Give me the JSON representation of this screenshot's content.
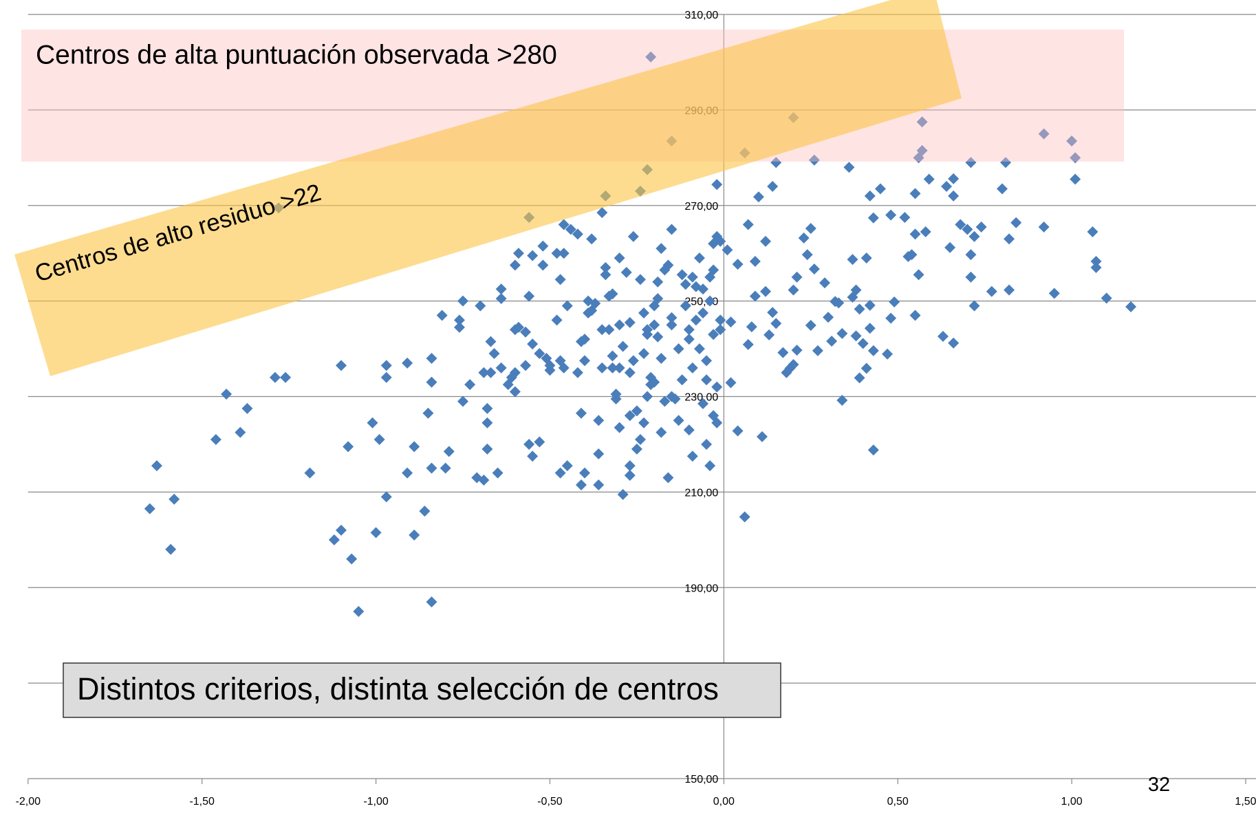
{
  "chart_data": {
    "type": "scatter",
    "color": "#4a7ebb",
    "grid": true,
    "xlim": [
      -2,
      1.5
    ],
    "xticks": [
      {
        "value": -2,
        "label": "-2,00"
      },
      {
        "value": -1.5,
        "label": "-1,50"
      },
      {
        "value": -1,
        "label": "-1,00"
      },
      {
        "value": -0.5,
        "label": "-0,50"
      },
      {
        "value": 0,
        "label": "0,00"
      },
      {
        "value": 0.5,
        "label": "0,50"
      },
      {
        "value": 1,
        "label": "1,00"
      },
      {
        "value": 1.5,
        "label": "1,50"
      }
    ],
    "ylim": [
      150,
      310
    ],
    "yticks": [
      {
        "value": 150,
        "label": "150,00"
      },
      {
        "value": 170,
        "label": "170,00"
      },
      {
        "value": 190,
        "label": "190,00"
      },
      {
        "value": 210,
        "label": "210,00"
      },
      {
        "value": 230,
        "label": "230,00"
      },
      {
        "value": 250,
        "label": "250,00"
      },
      {
        "value": 270,
        "label": "270,00"
      },
      {
        "value": 290,
        "label": "290,00"
      },
      {
        "value": 310,
        "label": "310,00"
      }
    ],
    "annotations": [
      "Centros de alta puntuación observada >280",
      "Centros de alto residuo >22",
      "Distintos criterios, distinta selección de centros"
    ],
    "page_number": "32",
    "x": [
      -1.65,
      -1.63,
      -1.59,
      -1.58,
      -1.46,
      -1.43,
      -1.39,
      -1.37,
      -1.29,
      -1.26,
      -1.19,
      -1.12,
      -1.1,
      -1.1,
      -1.08,
      -1.07,
      -1.05,
      -1.01,
      -1,
      -0.99,
      -0.97,
      -0.97,
      -0.97,
      -0.91,
      -0.91,
      -0.89,
      -0.89,
      -0.86,
      -0.85,
      -0.84,
      -0.84,
      -0.84,
      -0.84,
      -0.8,
      -0.79,
      -0.81,
      -0.76,
      -0.76,
      -0.75,
      -0.75,
      -0.73,
      -0.71,
      -0.69,
      -0.7,
      -0.69,
      -0.68,
      -0.68,
      -0.68,
      -0.67,
      -0.67,
      -0.66,
      -0.65,
      -0.64,
      -0.64,
      -0.64,
      -0.62,
      -0.61,
      -0.6,
      -0.6,
      -0.6,
      -0.59,
      -0.6,
      -0.59,
      -0.57,
      -0.57,
      -0.56,
      -0.56,
      -0.55,
      -0.55,
      -0.55,
      -0.53,
      -0.53,
      -0.52,
      -0.52,
      -0.51,
      -0.5,
      -0.5,
      -0.48,
      -0.48,
      -0.47,
      -0.47,
      -0.47,
      -0.46,
      -0.46,
      -0.46,
      -0.45,
      -0.45,
      -0.44,
      -0.42,
      -0.42,
      -0.41,
      -0.41,
      -0.41,
      -0.4,
      -0.4,
      -0.4,
      -0.39,
      -0.39,
      -0.38,
      -0.38,
      -0.37,
      -0.36,
      -0.36,
      -0.36,
      -0.35,
      -0.35,
      -0.35,
      -0.34,
      -0.34,
      -0.33,
      -0.33,
      -0.32,
      -0.32,
      -0.32,
      -0.31,
      -0.31,
      -0.3,
      -0.3,
      -0.3,
      -0.3,
      -0.29,
      -0.29,
      -0.28,
      -0.27,
      -0.27,
      -0.27,
      -0.27,
      -0.27,
      -0.26,
      -0.26,
      -0.25,
      -0.25,
      -0.24,
      -0.24,
      -0.23,
      -0.23,
      -0.23,
      -0.22,
      -0.22,
      -0.22,
      -0.21,
      -0.21,
      -0.2,
      -0.2,
      -0.2,
      -0.19,
      -0.19,
      -0.19,
      -0.18,
      -0.18,
      -0.18,
      -0.17,
      -0.17,
      -0.16,
      -0.16,
      -0.15,
      -0.15,
      -0.15,
      -0.15,
      -0.14,
      -0.13,
      -0.13,
      -0.12,
      -0.12,
      -0.11,
      -0.11,
      -0.1,
      -0.1,
      -0.1,
      -0.09,
      -0.09,
      -0.09,
      -0.08,
      -0.08,
      -0.07,
      -0.07,
      -0.06,
      -0.06,
      -0.06,
      -0.05,
      -0.05,
      -0.05,
      -0.04,
      -0.04,
      -0.04,
      -0.03,
      -0.03,
      -0.03,
      -0.03,
      -0.02,
      -0.02,
      -0.01,
      -0.01,
      -0.02,
      -0.01,
      -0.02,
      0.43,
      0.42,
      0.45,
      0.48,
      0.52,
      0.55,
      0.59,
      0.64,
      0.66,
      0.66,
      0.68,
      0.7,
      0.72,
      0.74,
      0.8,
      0.82,
      0.84,
      0.92,
      1.06,
      1.07,
      1.07,
      1.1,
      1.17,
      0.95,
      0.82,
      0.77,
      0.72,
      0.71,
      0.71,
      0.65,
      0.63,
      0.66,
      0.58,
      0.55,
      0.56,
      0.55,
      0.54,
      0.53,
      0.49,
      0.48,
      0.47,
      0.43,
      0.41,
      0.43,
      0.42,
      0.42,
      0.39,
      0.41,
      0.37,
      0.38,
      0.37,
      0.38,
      0.4,
      0.39,
      0.34,
      0.34,
      0.33,
      0.32,
      0.31,
      0.3,
      0.27,
      0.29,
      0.26,
      0.25,
      0.25,
      0.24,
      0.23,
      0.2,
      0.21,
      0.21,
      0.2,
      0.19,
      0.18,
      0.17,
      0.15,
      0.14,
      0.13,
      0.12,
      0.11,
      0.12,
      0.14,
      0.1,
      0.09,
      0.08,
      0.09,
      0.07,
      0.07,
      0.06,
      0.04,
      0.02,
      0.02,
      0.04,
      0.01,
      -0.21,
      0.2,
      -0.15,
      0.06,
      -0.22,
      -0.24,
      -0.34,
      0.15,
      0.26,
      0.36,
      0.57,
      0.57,
      0.56,
      0.92,
      1,
      1.01,
      1.01,
      0.71,
      0.81,
      -0.56,
      -1.28
    ],
    "values": [
      206.5,
      215.5,
      198,
      208.5,
      221,
      230.5,
      222.5,
      227.5,
      234,
      234,
      214,
      200,
      202,
      236.5,
      219.5,
      196,
      185,
      224.5,
      201.5,
      221,
      209,
      236.5,
      234,
      214,
      237,
      219.5,
      201,
      206,
      226.5,
      215,
      233,
      238,
      187,
      215,
      218.5,
      247,
      244.5,
      246,
      250,
      229,
      232.5,
      213,
      212.5,
      249,
      235,
      219,
      227.5,
      224.5,
      235,
      241.5,
      239,
      214,
      236,
      250.5,
      252.5,
      232.5,
      234,
      231,
      235,
      244,
      244.5,
      257.5,
      260,
      243.5,
      236.5,
      251,
      220,
      217.5,
      241,
      259.5,
      220.5,
      239,
      261.5,
      257.5,
      238,
      235.5,
      236.5,
      260,
      246,
      254.5,
      237.5,
      214,
      236,
      260,
      266,
      249,
      215.5,
      265,
      264,
      235,
      226.5,
      241.5,
      211.5,
      214,
      242,
      237.5,
      247.5,
      250,
      263,
      248,
      249.5,
      225,
      211.5,
      218,
      268.5,
      244,
      236,
      257,
      255.5,
      244,
      251,
      251.5,
      238.5,
      236,
      229.5,
      230.5,
      259,
      245,
      236,
      223.5,
      209.5,
      240.5,
      256,
      215.5,
      213.5,
      245.5,
      235,
      226,
      263.5,
      237.5,
      227,
      219,
      221,
      254.5,
      247.5,
      239,
      224.5,
      244,
      243,
      230,
      232.5,
      234,
      233,
      245,
      249,
      250.5,
      254,
      242.5,
      261,
      238,
      222.5,
      229,
      256.5,
      257.5,
      213,
      265,
      245,
      246.5,
      230,
      229.5,
      225,
      240,
      255.5,
      233.5,
      253.5,
      249,
      244,
      242,
      223,
      255,
      236,
      217.5,
      246,
      253,
      259,
      240,
      252.5,
      247.5,
      228.5,
      237.5,
      233.5,
      220,
      215.5,
      255,
      250,
      256.5,
      262,
      243,
      226,
      224.5,
      232,
      246,
      244,
      263.5,
      262.5,
      274.4,
      267.4,
      272,
      273.5,
      268,
      267.5,
      272.5,
      275.5,
      274,
      275.6,
      272,
      266,
      265,
      263.5,
      265.5,
      273.5,
      263,
      266.4,
      265.5,
      264.5,
      258.3,
      257,
      250.6,
      248.8,
      251.6,
      252.3,
      252,
      249,
      255,
      259.7,
      261.2,
      242.6,
      241.2,
      264.5,
      264,
      255.5,
      247,
      259.7,
      259.3,
      249.8,
      246.4,
      238.9,
      218.8,
      235.9,
      239.6,
      244.3,
      249.1,
      248.3,
      259,
      258.7,
      252.3,
      250.8,
      242.7,
      241.1,
      233.9,
      243.2,
      229.2,
      249.6,
      249.9,
      241.6,
      246.6,
      239.6,
      253.8,
      256.7,
      244.9,
      265.2,
      259.7,
      263.2,
      252.3,
      255,
      239.7,
      236.7,
      235.9,
      235,
      239.2,
      245.3,
      247.6,
      242.9,
      252,
      221.6,
      262.5,
      274,
      271.8,
      258.3,
      244.6,
      251,
      266,
      240.9,
      204.8,
      222.8,
      232.9,
      245.6,
      257.7,
      260.7,
      301.1,
      288.4,
      283.5,
      281,
      277.5,
      273,
      272,
      279,
      279.5,
      278,
      287.5,
      281.5,
      280,
      285,
      283.5,
      280,
      275.5,
      279,
      279,
      267.5,
      269.5
    ]
  }
}
